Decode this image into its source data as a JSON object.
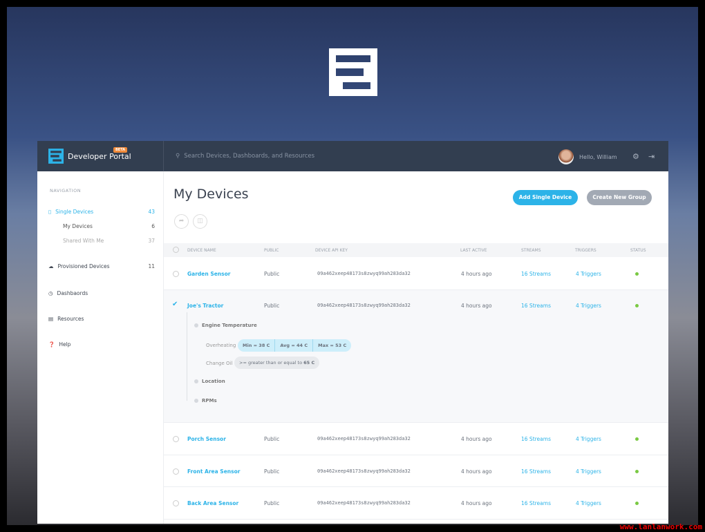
{
  "brand": {
    "name": "Developer Portal",
    "badge": "BETA"
  },
  "search": {
    "placeholder": "Search Devices, Dashboards, and Resources"
  },
  "user": {
    "greeting": "Hello, William"
  },
  "sidebar": {
    "heading": "NAVIGATION",
    "items": [
      {
        "label": "Single Devices",
        "count": "43"
      },
      {
        "label": "My Devices",
        "count": "6"
      },
      {
        "label": "Shared With Me",
        "count": "37"
      },
      {
        "label": "Provisioned Devices",
        "count": "11"
      },
      {
        "label": "Dashbaords"
      },
      {
        "label": "Resources"
      },
      {
        "label": "Help"
      }
    ]
  },
  "main": {
    "title": "My Devices",
    "add_button": "Add Single Device",
    "group_button": "Create New Group"
  },
  "table": {
    "headers": [
      "DEVICE NAME",
      "PUBLIC",
      "DEVICE API KEY",
      "LAST ACTIVE",
      "STREAMS",
      "TRIGGERS",
      "STATUS"
    ],
    "rows": [
      {
        "name": "Garden Sensor",
        "public": "Public",
        "key": "09a462xeep48173s8zwyq99ah283da32",
        "last": "4 hours ago",
        "streams": "16 Streams",
        "triggers": "4 Triggers"
      },
      {
        "name": "Joe's Tractor",
        "public": "Public",
        "key": "09a462xeep48173s8zwyq99ah283da32",
        "last": "4 hours ago",
        "streams": "16 Streams",
        "triggers": "4 Triggers"
      },
      {
        "name": "Porch Sensor",
        "public": "Public",
        "key": "09a462xeep48173s8zwyq99ah283da32",
        "last": "4 hours ago",
        "streams": "16 Streams",
        "triggers": "4 Triggers"
      },
      {
        "name": "Front Area Sensor",
        "public": "Public",
        "key": "09a462xeep48173s8zwyq99ah283da32",
        "last": "4 hours ago",
        "streams": "16 Streams",
        "triggers": "4 Triggers"
      },
      {
        "name": "Back Area Sensor",
        "public": "Public",
        "key": "09a462xeep48173s8zwyq99ah283da32",
        "last": "4 hours ago",
        "streams": "16 Streams",
        "triggers": "4 Triggers"
      }
    ]
  },
  "expanded": {
    "stream": "Engine Temperature",
    "trigger1": "Overheating",
    "min": "Min = 38 C",
    "avg": "Avg = 44 C",
    "max": "Max = 53 C",
    "trigger2": "Change Oil",
    "cond": ">= greater than or equal to ",
    "cond_val": "65 C",
    "stream2": "Location",
    "stream3": "RPMs"
  },
  "watermark": "www.lanlanwork.com",
  "colors": {
    "accent": "#2cb3e8",
    "header": "#323e50",
    "status": "#7ac943"
  }
}
